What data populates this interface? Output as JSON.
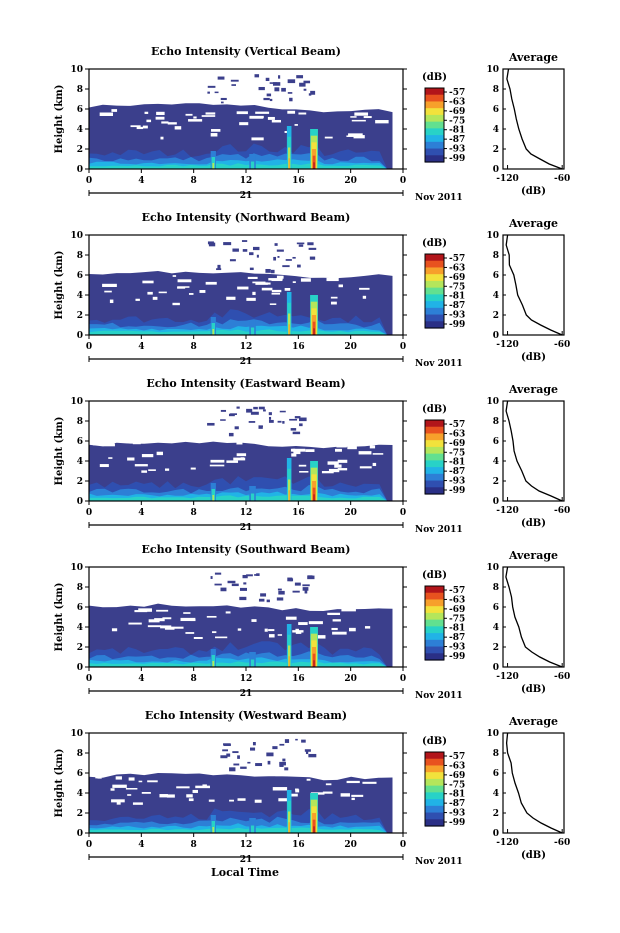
{
  "footer_label": "Local Time",
  "panel_common": {
    "ylabel": "Height (km)",
    "yticks": [
      "0",
      "2",
      "4",
      "6",
      "8",
      "10"
    ],
    "xticks": [
      "0",
      "4",
      "8",
      "12",
      "16",
      "20",
      "0"
    ],
    "day_label": "21",
    "month_label": "Nov 2011",
    "colorbar_unit": "(dB)",
    "colorbar_ticks": [
      "-57",
      "-63",
      "-69",
      "-75",
      "-81",
      "-87",
      "-93",
      "-99"
    ],
    "avg_title": "Average",
    "avg_xlabel": "(dB)",
    "avg_xticks": [
      "-120",
      "-60"
    ],
    "avg_yticks": [
      "0",
      "2",
      "4",
      "6",
      "8",
      "10"
    ]
  },
  "colors": {
    "background_echo": "#3b3f8c",
    "colormap": [
      "#2a2f86",
      "#2f4fb0",
      "#2d7fd6",
      "#21b3e6",
      "#28d2c7",
      "#62e090",
      "#b4e65b",
      "#f2e23c",
      "#f7a02b",
      "#e8521f",
      "#b2151a"
    ]
  },
  "chart_data": [
    {
      "type": "heatmap",
      "title": "Echo Intensity (Vertical Beam)",
      "x_range": [
        0,
        24
      ],
      "y_range": [
        0,
        10
      ],
      "echo_top_km": [
        6.3,
        6.3,
        6.4,
        6.4,
        6.4,
        6.5,
        6.5,
        6.5,
        6.5,
        6.4,
        6.4,
        6.3,
        6.3,
        6.2,
        6.0,
        5.9,
        5.8,
        5.8,
        5.7,
        5.8,
        5.8,
        5.9,
        5.8
      ],
      "average_profile": {
        "height_km": [
          0,
          0.5,
          1,
          1.5,
          2,
          3,
          4,
          5,
          6,
          7,
          8,
          9,
          10
        ],
        "db": [
          -60,
          -75,
          -85,
          -95,
          -100,
          -105,
          -108,
          -110,
          -113,
          -115,
          -118,
          -120,
          -119
        ]
      }
    },
    {
      "type": "heatmap",
      "title": "Echo Intensity (Northward Beam)",
      "x_range": [
        0,
        24
      ],
      "y_range": [
        0,
        10
      ],
      "echo_top_km": [
        6.0,
        6.0,
        6.1,
        6.2,
        6.2,
        6.3,
        6.3,
        6.4,
        6.3,
        6.3,
        6.2,
        6.2,
        6.1,
        6.0,
        5.9,
        5.8,
        5.8,
        5.7,
        5.7,
        5.8,
        5.9,
        6.0,
        5.9
      ],
      "average_profile": {
        "height_km": [
          0,
          0.5,
          1,
          1.5,
          2,
          3,
          4,
          5,
          6,
          7,
          8,
          9,
          10
        ],
        "db": [
          -60,
          -72,
          -84,
          -93,
          -99,
          -104,
          -108,
          -111,
          -114,
          -117,
          -119,
          -121,
          -120
        ]
      }
    },
    {
      "type": "heatmap",
      "title": "Echo Intensity (Eastward Beam)",
      "x_range": [
        0,
        24
      ],
      "y_range": [
        0,
        10
      ],
      "echo_top_km": [
        5.6,
        5.6,
        5.7,
        5.7,
        5.8,
        5.8,
        5.8,
        5.9,
        5.8,
        5.8,
        5.7,
        5.7,
        5.6,
        5.6,
        5.5,
        5.5,
        5.4,
        5.4,
        5.4,
        5.5,
        5.5,
        5.6,
        5.5
      ],
      "average_profile": {
        "height_km": [
          0,
          0.5,
          1,
          1.5,
          2,
          3,
          4,
          5,
          6,
          7,
          8,
          9,
          10
        ],
        "db": [
          -60,
          -73,
          -85,
          -94,
          -100,
          -105,
          -109,
          -112,
          -115,
          -117,
          -119,
          -121,
          -120
        ]
      }
    },
    {
      "type": "heatmap",
      "title": "Echo Intensity (Southward Beam)",
      "x_range": [
        0,
        24
      ],
      "y_range": [
        0,
        10
      ],
      "echo_top_km": [
        6.0,
        6.0,
        6.0,
        6.1,
        6.1,
        6.2,
        6.2,
        6.2,
        6.2,
        6.1,
        6.1,
        6.0,
        6.0,
        5.9,
        5.8,
        5.8,
        5.7,
        5.7,
        5.7,
        5.8,
        5.9,
        6.0,
        5.9
      ],
      "average_profile": {
        "height_km": [
          0,
          0.5,
          1,
          1.5,
          2,
          3,
          4,
          5,
          6,
          7,
          8,
          9,
          10
        ],
        "db": [
          -60,
          -74,
          -85,
          -94,
          -100,
          -105,
          -108,
          -111,
          -114,
          -116,
          -119,
          -121,
          -120
        ]
      }
    },
    {
      "type": "heatmap",
      "title": "Echo Intensity (Westward Beam)",
      "x_range": [
        0,
        24
      ],
      "y_range": [
        0,
        10
      ],
      "echo_top_km": [
        5.6,
        5.6,
        5.7,
        5.8,
        5.8,
        5.9,
        5.9,
        5.9,
        5.9,
        5.8,
        5.8,
        5.7,
        5.7,
        5.6,
        5.6,
        5.5,
        5.5,
        5.4,
        5.4,
        5.5,
        5.5,
        5.6,
        5.5
      ],
      "average_profile": {
        "height_km": [
          0,
          0.5,
          1,
          1.5,
          2,
          3,
          4,
          5,
          6,
          7,
          8,
          9,
          10
        ],
        "db": [
          -60,
          -73,
          -84,
          -93,
          -99,
          -104,
          -108,
          -111,
          -114,
          -117,
          -119,
          -121,
          -120
        ]
      }
    }
  ]
}
